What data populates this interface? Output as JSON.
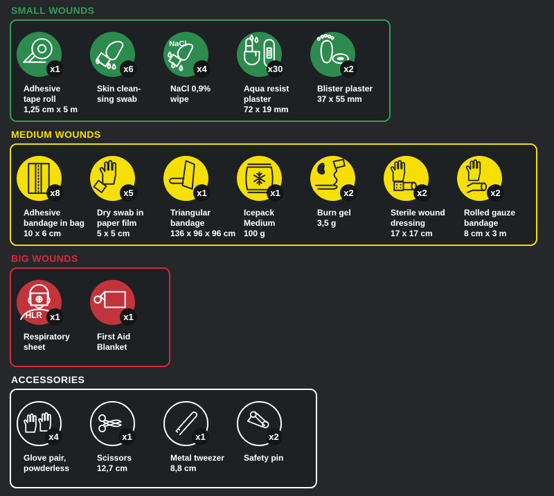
{
  "page": {
    "background": "#25272a",
    "box_background": "#1e2124",
    "badge_background": "#131517",
    "label_color": "#ffffff"
  },
  "sections": [
    {
      "id": "small-wounds",
      "title": "SMALL WOUNDS",
      "accent": "#2f9e57",
      "circle_fill": "#2e8b50",
      "circle_style": "filled",
      "icon_ink": "#ffffff",
      "items": [
        {
          "icon": "adhesive-tape-roll-icon",
          "qty": "x1",
          "label": "Adhesive\ntape roll\n1,25 cm x 5 m"
        },
        {
          "icon": "skin-cleansing-swab-icon",
          "qty": "x6",
          "label": "Skin clean-\nsing swab"
        },
        {
          "icon": "nacl-wipe-icon",
          "qty": "x4",
          "label": "NaCl 0,9%\nwipe",
          "icon_text": "NaCl"
        },
        {
          "icon": "aqua-resist-plaster-icon",
          "qty": "x30",
          "label": "Aqua resist\nplaster\n72 x 19 mm"
        },
        {
          "icon": "blister-plaster-icon",
          "qty": "x2",
          "label": "Blister plaster\n37 x 55 mm"
        }
      ]
    },
    {
      "id": "medium-wounds",
      "title": "MEDIUM WOUNDS",
      "accent": "#f5df00",
      "circle_fill": "#f6e003",
      "circle_style": "filled",
      "icon_ink": "#212429",
      "items": [
        {
          "icon": "adhesive-bandage-bag-icon",
          "qty": "x8",
          "label": "Adhesive\nbandage in bag\n10 x 6 cm"
        },
        {
          "icon": "dry-swab-icon",
          "qty": "x5",
          "label": "Dry swab in\npaper film\n5 x 5 cm"
        },
        {
          "icon": "triangular-bandage-icon",
          "qty": "x1",
          "label": "Triangular\nbandage\n136 x 96 x 96 cm"
        },
        {
          "icon": "icepack-icon",
          "qty": "x1",
          "label": "Icepack\nMedium\n100 g"
        },
        {
          "icon": "burn-gel-icon",
          "qty": "x2",
          "label": "Burn gel\n3,5 g"
        },
        {
          "icon": "sterile-wound-dressing-icon",
          "qty": "x2",
          "label": "Sterile wound\ndressing\n17 x 17 cm"
        },
        {
          "icon": "rolled-gauze-bandage-icon",
          "qty": "x2",
          "label": "Rolled gauze\nbandage\n8 cm x 3 m"
        }
      ]
    },
    {
      "id": "big-wounds",
      "title": "BIG WOUNDS",
      "accent": "#d02d37",
      "circle_fill": "#c2333c",
      "circle_style": "filled",
      "icon_ink": "#ffffff",
      "items": [
        {
          "icon": "respiratory-sheet-icon",
          "qty": "x1",
          "label": "Respiratory\nsheet",
          "icon_text": "HLR"
        },
        {
          "icon": "first-aid-blanket-icon",
          "qty": "x1",
          "label": "First Aid\nBlanket"
        }
      ]
    },
    {
      "id": "accessories",
      "title": "ACCESSORIES",
      "accent": "#fdfdfd",
      "circle_fill": "transparent",
      "circle_style": "outline",
      "icon_ink": "#ffffff",
      "items": [
        {
          "icon": "glove-pair-icon",
          "qty": "x4",
          "label": "Glove pair,\npowderless"
        },
        {
          "icon": "scissors-icon",
          "qty": "x1",
          "label": "Scissors\n12,7 cm"
        },
        {
          "icon": "metal-tweezer-icon",
          "qty": "x1",
          "label": "Metal tweezer\n8,8 cm"
        },
        {
          "icon": "safety-pin-icon",
          "qty": "x2",
          "label": "Safety pin"
        }
      ]
    }
  ]
}
